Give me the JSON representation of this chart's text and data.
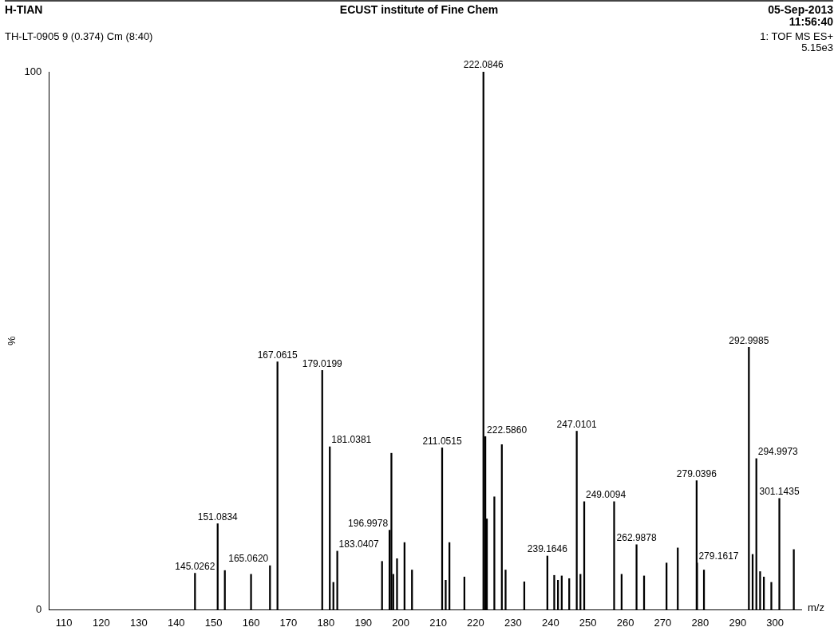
{
  "chart_data": {
    "type": "bar",
    "title": "ECUST institute of Fine Chem",
    "xlabel": "m/z",
    "ylabel": "%",
    "annotations": [
      "H-TIAN",
      "05-Sep-2013",
      "11:56:40",
      "TH-LT-0905 9 (0.374) Cm (8:40)",
      "1: TOF MS ES+",
      "5.15e3",
      {
        "text": "145.0262",
        "x": 145.0262,
        "y": 6.8
      },
      {
        "text": "151.0834",
        "x": 151.0834,
        "y": 16.0
      },
      {
        "text": "165.0620",
        "x": 165.062,
        "y": 8.2
      },
      {
        "text": "167.0615",
        "x": 167.0615,
        "y": 46.1
      },
      {
        "text": "179.0199",
        "x": 179.0199,
        "y": 44.5
      },
      {
        "text": "181.0381",
        "x": 181.0381,
        "y": 30.3
      },
      {
        "text": "183.0407",
        "x": 183.0407,
        "y": 10.9
      },
      {
        "text": "196.9978",
        "x": 196.9978,
        "y": 14.8
      },
      {
        "text": "211.0515",
        "x": 211.0515,
        "y": 30.1
      },
      {
        "text": "222.0846",
        "x": 222.0846,
        "y": 100
      },
      {
        "text": "222.5860",
        "x": 222.586,
        "y": 32.2
      },
      {
        "text": "239.1646",
        "x": 239.1646,
        "y": 10.0
      },
      {
        "text": "247.0101",
        "x": 247.0101,
        "y": 33.2
      },
      {
        "text": "249.0094",
        "x": 249.0094,
        "y": 20.1
      },
      {
        "text": "262.9878",
        "x": 262.9878,
        "y": 12.1
      },
      {
        "text": "279.0396",
        "x": 279.0396,
        "y": 24.0
      },
      {
        "text": "279.1617",
        "x": 279.1617,
        "y": 8.7
      },
      {
        "text": "292.9985",
        "x": 292.9985,
        "y": 48.8
      },
      {
        "text": "294.9973",
        "x": 294.9973,
        "y": 28.1
      },
      {
        "text": "301.1435",
        "x": 301.1435,
        "y": 20.7
      }
    ],
    "x": [
      145.0262,
      151.0834,
      153,
      160,
      165.062,
      167.0615,
      179.0199,
      181.0381,
      182,
      183.0407,
      195,
      196.9978,
      197.5,
      198,
      199,
      201,
      203,
      211.0515,
      212,
      213,
      217,
      222.0846,
      222.586,
      223,
      225,
      227,
      228,
      233,
      239.1646,
      241,
      242,
      243,
      245,
      247.0101,
      248,
      249.0094,
      257,
      259,
      262.9878,
      265,
      271,
      274,
      279.0396,
      279.1617,
      281,
      292.9985,
      294,
      294.9973,
      296,
      297,
      299,
      301.1435,
      305
    ],
    "values": [
      6.8,
      16.0,
      7.3,
      6.6,
      8.2,
      46.1,
      44.5,
      30.3,
      5.1,
      10.9,
      9.0,
      14.8,
      29.1,
      6.6,
      9.5,
      12.5,
      7.4,
      30.1,
      5.5,
      12.5,
      6.1,
      100,
      32.2,
      16.9,
      21.0,
      30.7,
      7.4,
      5.2,
      10.0,
      6.4,
      5.5,
      6.3,
      5.8,
      33.2,
      6.6,
      20.1,
      20.1,
      6.6,
      12.1,
      6.3,
      8.7,
      11.5,
      24.0,
      8.7,
      7.4,
      48.8,
      10.3,
      28.1,
      7.1,
      6.1,
      5.1,
      20.7,
      11.2
    ],
    "color": "#000000",
    "xlim": [
      106,
      307
    ],
    "xticks": [
      110,
      120,
      130,
      140,
      150,
      160,
      170,
      180,
      190,
      200,
      210,
      220,
      230,
      240,
      250,
      260,
      270,
      280,
      290,
      300
    ],
    "ylim": [
      0,
      100
    ],
    "yticks": [
      0,
      100
    ]
  }
}
